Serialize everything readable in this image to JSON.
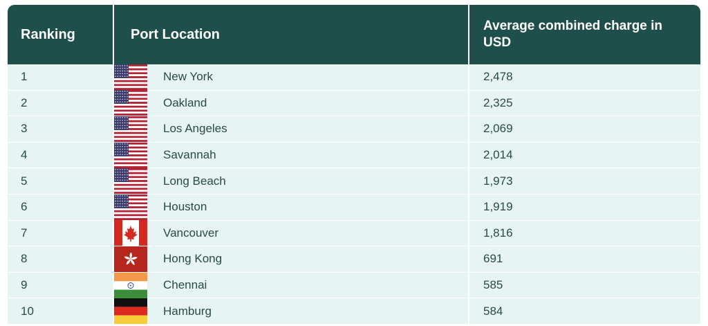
{
  "table": {
    "headers": {
      "ranking": "Ranking",
      "location": "Port Location",
      "charge": "Average combined charge in USD"
    },
    "rows": [
      {
        "rank": "1",
        "flag": "us-flag-icon",
        "location": "New York",
        "charge": "2,478"
      },
      {
        "rank": "2",
        "flag": "us-flag-icon",
        "location": "Oakland",
        "charge": "2,325"
      },
      {
        "rank": "3",
        "flag": "us-flag-icon",
        "location": "Los Angeles",
        "charge": "2,069"
      },
      {
        "rank": "4",
        "flag": "us-flag-icon",
        "location": "Savannah",
        "charge": "2,014"
      },
      {
        "rank": "5",
        "flag": "us-flag-icon",
        "location": "Long Beach",
        "charge": "1,973"
      },
      {
        "rank": "6",
        "flag": "us-flag-icon",
        "location": "Houston",
        "charge": "1,919"
      },
      {
        "rank": "7",
        "flag": "canada-flag-icon",
        "location": "Vancouver",
        "charge": "1,816"
      },
      {
        "rank": "8",
        "flag": "hong-kong-flag-icon",
        "location": "Hong Kong",
        "charge": "691"
      },
      {
        "rank": "9",
        "flag": "india-flag-icon",
        "location": "Chennai",
        "charge": "585"
      },
      {
        "rank": "10",
        "flag": "germany-flag-icon",
        "location": "Hamburg",
        "charge": "584"
      }
    ]
  },
  "colors": {
    "header_bg": "#1f4f4a",
    "row_bg": "#e6f5f3",
    "text": "#2a4a46"
  }
}
